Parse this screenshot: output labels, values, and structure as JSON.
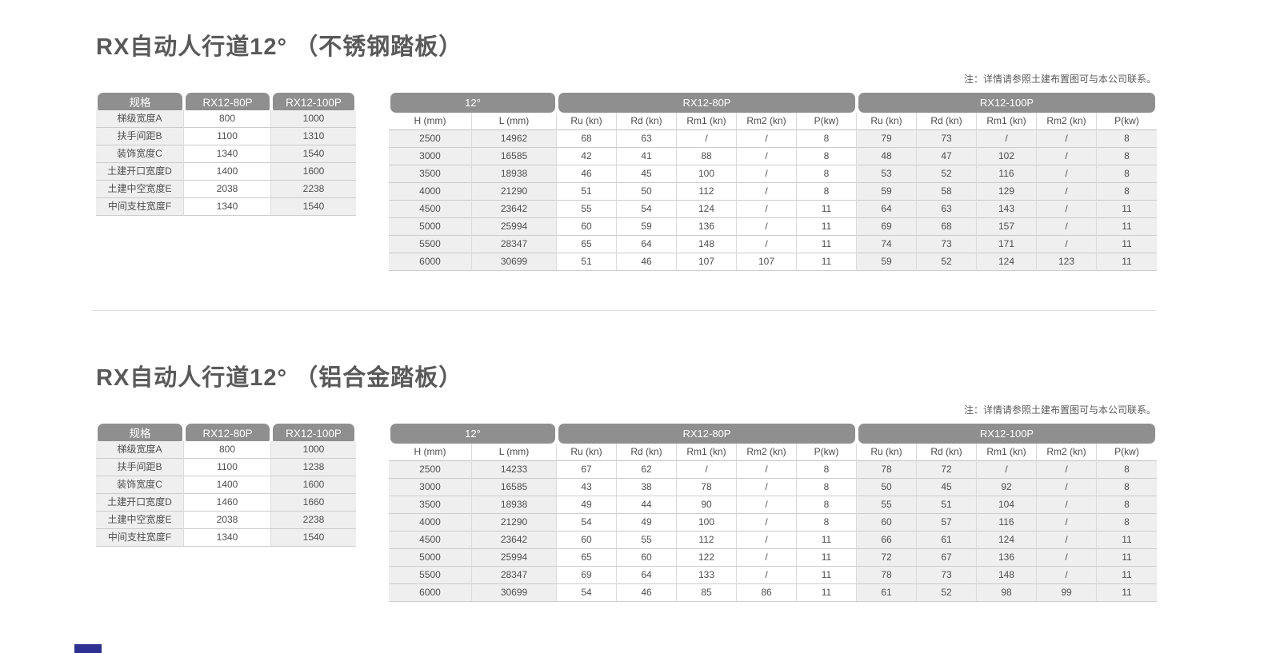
{
  "colors": {
    "header_bg": "#8f8f8f",
    "stripe_bg": "#efefef",
    "accent": "#2e3192"
  },
  "sections": [
    {
      "title": "RX自动人行道12° （不锈钢踏板）",
      "note": "注：详情请参照土建布置图可与本公司联系。",
      "spec": {
        "headers": [
          "规格",
          "RX12-80P",
          "RX12-100P"
        ],
        "rows": [
          [
            "梯级宽度A",
            "800",
            "1000"
          ],
          [
            "扶手间距B",
            "1100",
            "1310"
          ],
          [
            "装饰宽度C",
            "1340",
            "1540"
          ],
          [
            "土建开口宽度D",
            "1400",
            "1600"
          ],
          [
            "土建中空宽度E",
            "2038",
            "2238"
          ],
          [
            "中间支柱宽度F",
            "1340",
            "1540"
          ]
        ]
      },
      "load": {
        "groups": [
          {
            "label": "12°",
            "span": 2
          },
          {
            "label": "RX12-80P",
            "span": 5
          },
          {
            "label": "RX12-100P",
            "span": 5
          }
        ],
        "columns": [
          "H (mm)",
          "L (mm)",
          "Ru (kn)",
          "Rd (kn)",
          "Rm1 (kn)",
          "Rm2 (kn)",
          "P(kw)",
          "Ru (kn)",
          "Rd (kn)",
          "Rm1 (kn)",
          "Rm2 (kn)",
          "P(kw)"
        ],
        "rows": [
          [
            "2500",
            "14962",
            "68",
            "63",
            "/",
            "/",
            "8",
            "79",
            "73",
            "/",
            "/",
            "8"
          ],
          [
            "3000",
            "16585",
            "42",
            "41",
            "88",
            "/",
            "8",
            "48",
            "47",
            "102",
            "/",
            "8"
          ],
          [
            "3500",
            "18938",
            "46",
            "45",
            "100",
            "/",
            "8",
            "53",
            "52",
            "116",
            "/",
            "8"
          ],
          [
            "4000",
            "21290",
            "51",
            "50",
            "112",
            "/",
            "8",
            "59",
            "58",
            "129",
            "/",
            "8"
          ],
          [
            "4500",
            "23642",
            "55",
            "54",
            "124",
            "/",
            "11",
            "64",
            "63",
            "143",
            "/",
            "11"
          ],
          [
            "5000",
            "25994",
            "60",
            "59",
            "136",
            "/",
            "11",
            "69",
            "68",
            "157",
            "/",
            "11"
          ],
          [
            "5500",
            "28347",
            "65",
            "64",
            "148",
            "/",
            "11",
            "74",
            "73",
            "171",
            "/",
            "11"
          ],
          [
            "6000",
            "30699",
            "51",
            "46",
            "107",
            "107",
            "11",
            "59",
            "52",
            "124",
            "123",
            "11"
          ]
        ]
      }
    },
    {
      "title": "RX自动人行道12° （铝合金踏板）",
      "note": "注：详情请参照土建布置图可与本公司联系。",
      "spec": {
        "headers": [
          "规格",
          "RX12-80P",
          "RX12-100P"
        ],
        "rows": [
          [
            "梯级宽度A",
            "800",
            "1000"
          ],
          [
            "扶手间距B",
            "1100",
            "1238"
          ],
          [
            "装饰宽度C",
            "1400",
            "1600"
          ],
          [
            "土建开口宽度D",
            "1460",
            "1660"
          ],
          [
            "土建中空宽度E",
            "2038",
            "2238"
          ],
          [
            "中间支柱宽度F",
            "1340",
            "1540"
          ]
        ]
      },
      "load": {
        "groups": [
          {
            "label": "12°",
            "span": 2
          },
          {
            "label": "RX12-80P",
            "span": 5
          },
          {
            "label": "RX12-100P",
            "span": 5
          }
        ],
        "columns": [
          "H (mm)",
          "L (mm)",
          "Ru (kn)",
          "Rd (kn)",
          "Rm1 (kn)",
          "Rm2 (kn)",
          "P(kw)",
          "Ru (kn)",
          "Rd (kn)",
          "Rm1 (kn)",
          "Rm2 (kn)",
          "P(kw)"
        ],
        "rows": [
          [
            "2500",
            "14233",
            "67",
            "62",
            "/",
            "/",
            "8",
            "78",
            "72",
            "/",
            "/",
            "8"
          ],
          [
            "3000",
            "16585",
            "43",
            "38",
            "78",
            "/",
            "8",
            "50",
            "45",
            "92",
            "/",
            "8"
          ],
          [
            "3500",
            "18938",
            "49",
            "44",
            "90",
            "/",
            "8",
            "55",
            "51",
            "104",
            "/",
            "8"
          ],
          [
            "4000",
            "21290",
            "54",
            "49",
            "100",
            "/",
            "8",
            "60",
            "57",
            "116",
            "/",
            "8"
          ],
          [
            "4500",
            "23642",
            "60",
            "55",
            "112",
            "/",
            "11",
            "66",
            "61",
            "124",
            "/",
            "11"
          ],
          [
            "5000",
            "25994",
            "65",
            "60",
            "122",
            "/",
            "11",
            "72",
            "67",
            "136",
            "/",
            "11"
          ],
          [
            "5500",
            "28347",
            "69",
            "64",
            "133",
            "/",
            "11",
            "78",
            "73",
            "148",
            "/",
            "11"
          ],
          [
            "6000",
            "30699",
            "54",
            "46",
            "85",
            "86",
            "11",
            "61",
            "52",
            "98",
            "99",
            "11"
          ]
        ]
      }
    }
  ]
}
